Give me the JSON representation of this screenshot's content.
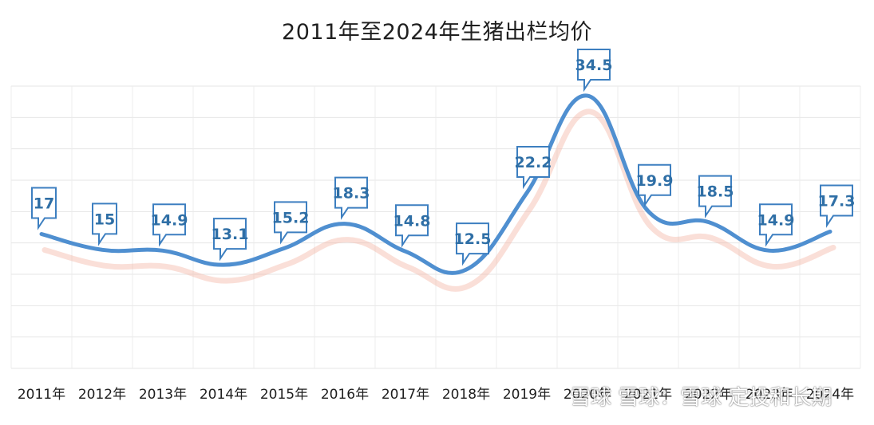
{
  "chart_data": {
    "type": "line",
    "title": "2011年至2024年生猪出栏均价",
    "categories": [
      "2011年",
      "2012年",
      "2013年",
      "2014年",
      "2015年",
      "2016年",
      "2017年",
      "2018年",
      "2019年",
      "2020年",
      "2021年",
      "2022年",
      "2023年",
      "2024年"
    ],
    "series": [
      {
        "values": [
          17,
          15,
          14.9,
          13.1,
          15.2,
          18.3,
          14.8,
          12.5,
          22.2,
          34.5,
          19.9,
          18.5,
          14.9,
          17.3
        ]
      }
    ],
    "data_labels": [
      "17",
      "15",
      "14.9",
      "13.1",
      "15.2",
      "18.3",
      "14.8",
      "12.5",
      "22.2",
      "34.5",
      "19.9",
      "18.5",
      "14.9",
      "17.3"
    ],
    "ylim": [
      0,
      40
    ],
    "grid": true,
    "legend": "none",
    "line_color": "#4f8fd0",
    "shadow_color": "#f4b8a8",
    "label_border_color": "#3d7fc0"
  },
  "watermark": "雪球 雪球：雪球 定投和长期"
}
